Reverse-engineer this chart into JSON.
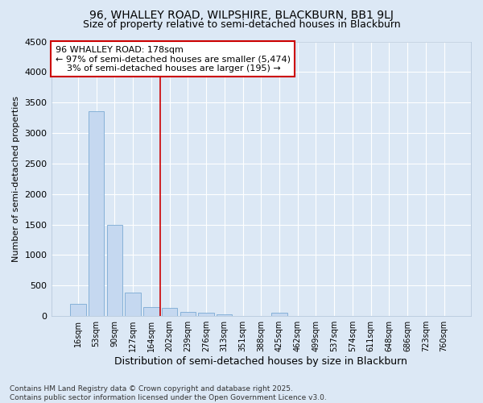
{
  "title1": "96, WHALLEY ROAD, WILPSHIRE, BLACKBURN, BB1 9LJ",
  "title2": "Size of property relative to semi-detached houses in Blackburn",
  "xlabel": "Distribution of semi-detached houses by size in Blackburn",
  "ylabel": "Number of semi-detached properties",
  "categories": [
    "16sqm",
    "53sqm",
    "90sqm",
    "127sqm",
    "164sqm",
    "202sqm",
    "239sqm",
    "276sqm",
    "313sqm",
    "351sqm",
    "388sqm",
    "425sqm",
    "462sqm",
    "499sqm",
    "537sqm",
    "574sqm",
    "611sqm",
    "648sqm",
    "686sqm",
    "723sqm",
    "760sqm"
  ],
  "values": [
    200,
    3360,
    1500,
    390,
    150,
    140,
    75,
    50,
    35,
    0,
    0,
    55,
    0,
    0,
    0,
    0,
    0,
    0,
    0,
    0,
    0
  ],
  "bar_color": "#c5d8f0",
  "bar_edge_color": "#7baad4",
  "vline_x": 4.5,
  "vline_color": "#cc0000",
  "annotation_line1": "96 WHALLEY ROAD: 178sqm",
  "annotation_line2": "← 97% of semi-detached houses are smaller (5,474)",
  "annotation_line3": "    3% of semi-detached houses are larger (195) →",
  "annotation_box_color": "#ffffff",
  "annotation_box_edge": "#cc0000",
  "ylim": [
    0,
    4500
  ],
  "yticks": [
    0,
    500,
    1000,
    1500,
    2000,
    2500,
    3000,
    3500,
    4000,
    4500
  ],
  "bg_color": "#dce8f5",
  "grid_color": "#ffffff",
  "footer": "Contains HM Land Registry data © Crown copyright and database right 2025.\nContains public sector information licensed under the Open Government Licence v3.0.",
  "title1_fontsize": 10,
  "title2_fontsize": 9,
  "annotation_fontsize": 8,
  "footer_fontsize": 6.5,
  "xlabel_fontsize": 9,
  "ylabel_fontsize": 8
}
